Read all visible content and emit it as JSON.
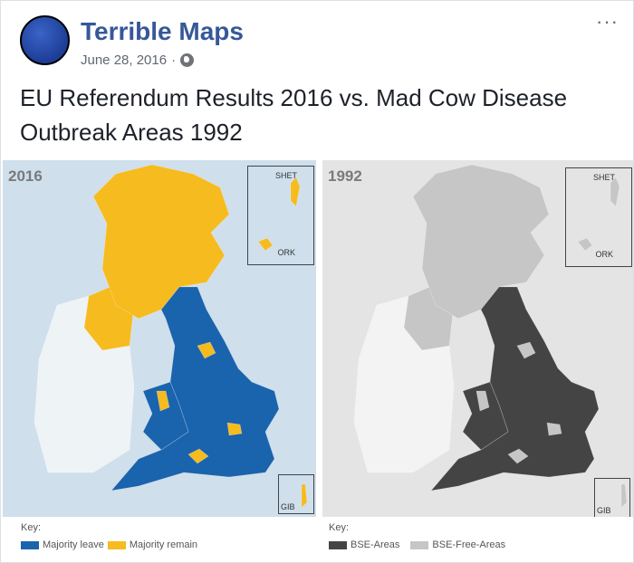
{
  "post": {
    "author": "Terrible Maps",
    "date": "June 28, 2016",
    "separator": "·",
    "privacy_icon": "globe-icon",
    "more_label": "···",
    "text": "EU Referendum Results 2016 vs. Mad Cow Disease Outbreak Areas 1992"
  },
  "maps": [
    {
      "year": "2016",
      "insets": {
        "shetland": "SHET",
        "orkney": "ORK",
        "gibraltar": "GIB"
      },
      "colors": {
        "background": "#cfdfec",
        "scotland": "#f6bb1e",
        "england": "#1a63ad",
        "wales": "#1a63ad",
        "ni": "#f6bb1e",
        "ireland": "#eef3f6",
        "spots": "#f6bb1e"
      },
      "key": {
        "title": "Key:",
        "items": [
          {
            "label": "Majority leave",
            "color": "#1a63ad"
          },
          {
            "label": "Majority remain",
            "color": "#f6bb1e"
          }
        ]
      }
    },
    {
      "year": "1992",
      "insets": {
        "shetland": "SHET",
        "orkney": "ORK",
        "gibraltar": "GIB"
      },
      "colors": {
        "background": "#e4e4e4",
        "scotland": "#c6c6c6",
        "england": "#444444",
        "wales": "#444444",
        "ni": "#c6c6c6",
        "ireland": "#f3f3f3",
        "spots": "#c6c6c6"
      },
      "key": {
        "title": "Key:",
        "items": [
          {
            "label": "BSE-Areas",
            "color": "#444444"
          },
          {
            "label": "BSE-Free-Areas",
            "color": "#c6c6c6"
          }
        ]
      }
    }
  ]
}
